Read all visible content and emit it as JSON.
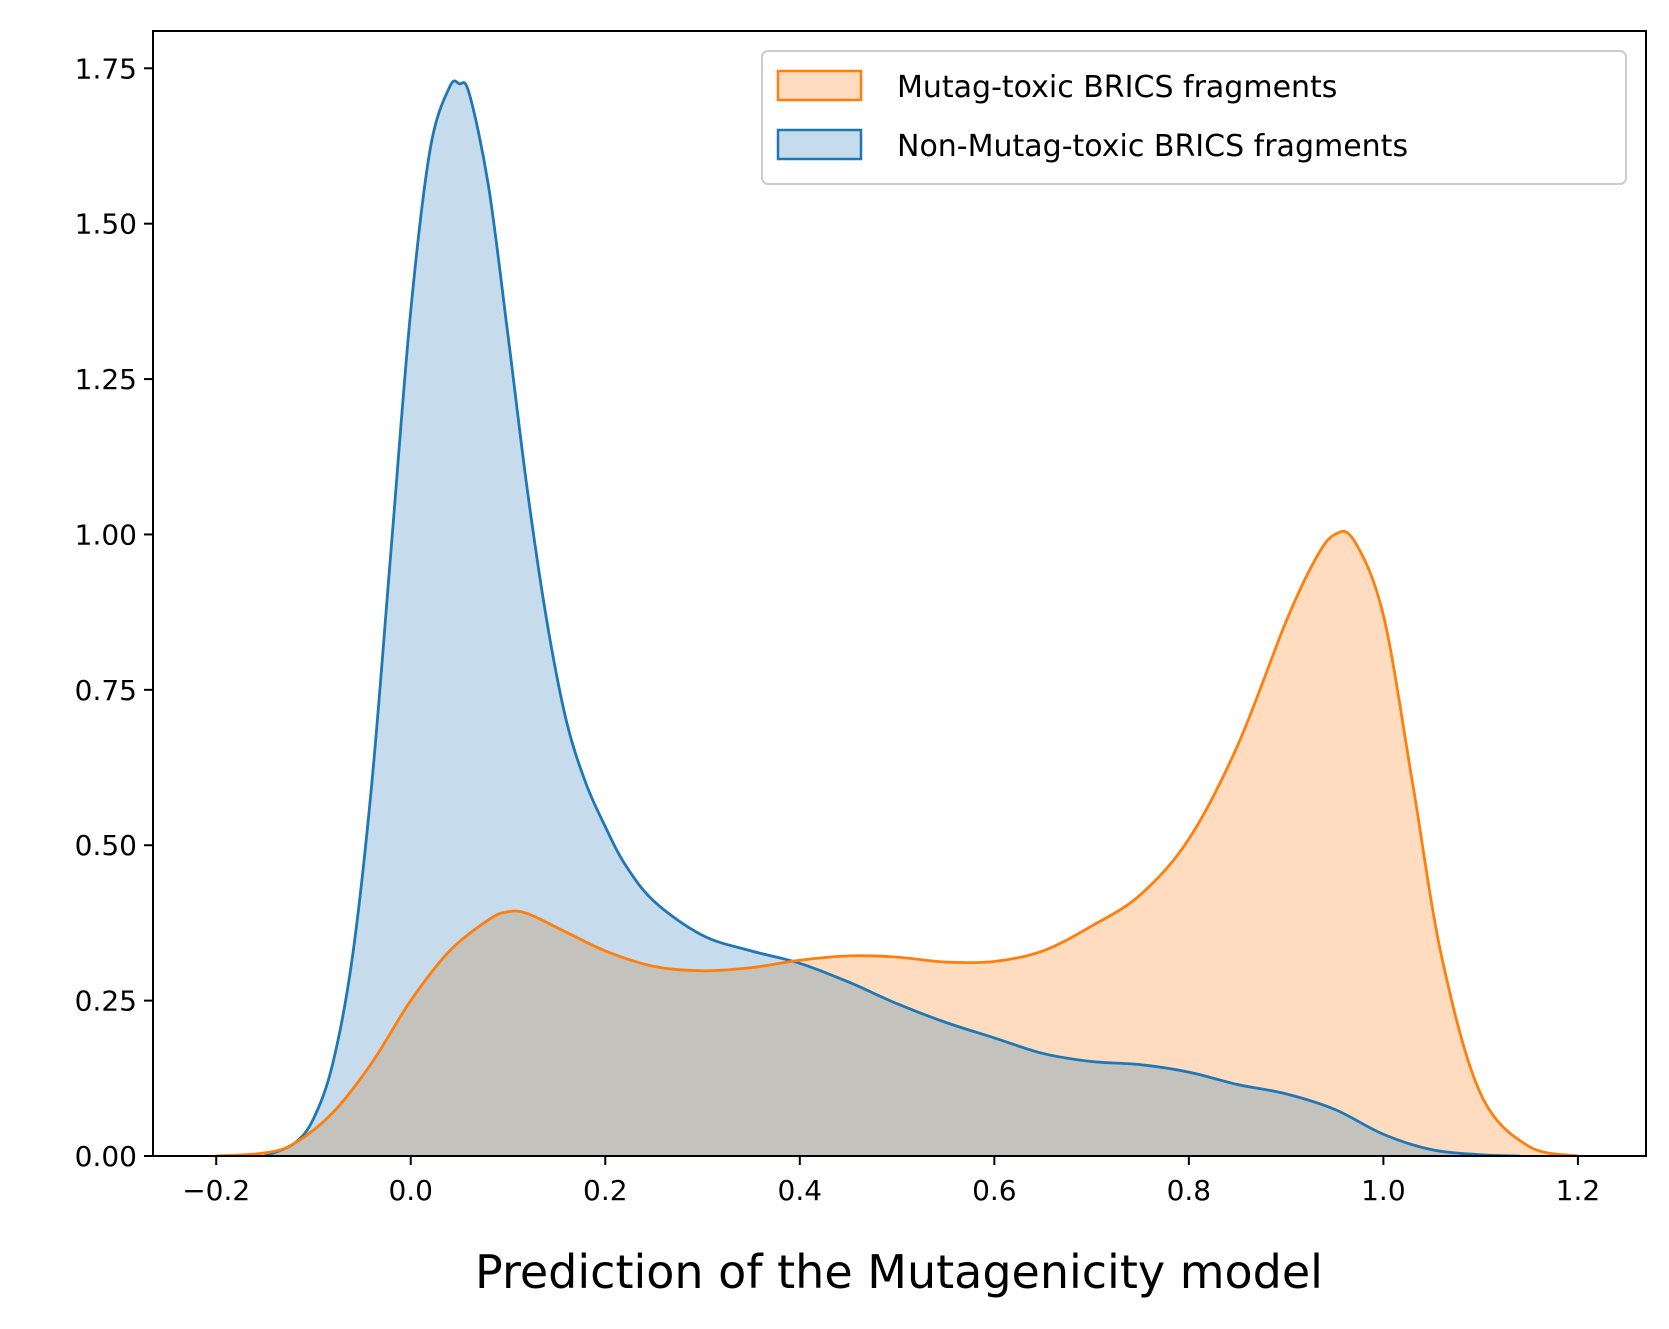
{
  "colors": {
    "mutag": "#ff7f0e",
    "mutag_fill": "#ffdcbf",
    "nonmutag": "#1f77b4",
    "nonmutag_fill": "#c6dbec",
    "overlap": "#c4c2bc"
  },
  "chart_data": {
    "type": "area",
    "title": "",
    "xlabel": "Prediction of the Mutagenicity model",
    "ylabel": "",
    "xlim": [
      -0.265,
      1.27
    ],
    "ylim": [
      0,
      1.81
    ],
    "xticks": [
      -0.2,
      0.0,
      0.2,
      0.4,
      0.6,
      0.8,
      1.0,
      1.2
    ],
    "xtick_labels": [
      "−0.2",
      "0.0",
      "0.2",
      "0.4",
      "0.6",
      "0.8",
      "1.0",
      "1.2"
    ],
    "yticks": [
      0.0,
      0.25,
      0.5,
      0.75,
      1.0,
      1.25,
      1.5,
      1.75
    ],
    "ytick_labels": [
      "0.00",
      "0.25",
      "0.50",
      "0.75",
      "1.00",
      "1.25",
      "1.50",
      "1.75"
    ],
    "grid": false,
    "legend_position": "top-right",
    "series": [
      {
        "name": "Mutag-toxic BRICS fragments",
        "x": [
          -0.2,
          -0.15,
          -0.12,
          -0.08,
          -0.04,
          0.0,
          0.04,
          0.08,
          0.1,
          0.12,
          0.16,
          0.2,
          0.25,
          0.3,
          0.35,
          0.4,
          0.45,
          0.5,
          0.55,
          0.6,
          0.65,
          0.7,
          0.75,
          0.8,
          0.85,
          0.9,
          0.93,
          0.95,
          0.97,
          1.0,
          1.03,
          1.06,
          1.1,
          1.15,
          1.2
        ],
        "y": [
          0.0,
          0.005,
          0.02,
          0.07,
          0.15,
          0.25,
          0.33,
          0.38,
          0.393,
          0.39,
          0.36,
          0.33,
          0.305,
          0.298,
          0.303,
          0.315,
          0.322,
          0.32,
          0.312,
          0.313,
          0.33,
          0.37,
          0.42,
          0.51,
          0.66,
          0.86,
          0.96,
          1.0,
          0.99,
          0.87,
          0.6,
          0.32,
          0.1,
          0.015,
          0.0
        ]
      },
      {
        "name": "Non-Mutag-toxic BRICS fragments",
        "x": [
          -0.15,
          -0.12,
          -0.1,
          -0.08,
          -0.06,
          -0.04,
          -0.02,
          0.0,
          0.02,
          0.04,
          0.05,
          0.06,
          0.08,
          0.1,
          0.12,
          0.14,
          0.16,
          0.18,
          0.2,
          0.22,
          0.25,
          0.3,
          0.35,
          0.4,
          0.45,
          0.5,
          0.55,
          0.6,
          0.65,
          0.7,
          0.75,
          0.8,
          0.85,
          0.9,
          0.95,
          1.0,
          1.05,
          1.1,
          1.14
        ],
        "y": [
          0.0,
          0.02,
          0.06,
          0.15,
          0.32,
          0.6,
          0.98,
          1.36,
          1.62,
          1.72,
          1.725,
          1.71,
          1.56,
          1.32,
          1.07,
          0.86,
          0.7,
          0.6,
          0.53,
          0.47,
          0.41,
          0.355,
          0.33,
          0.31,
          0.28,
          0.245,
          0.215,
          0.19,
          0.165,
          0.152,
          0.147,
          0.135,
          0.115,
          0.1,
          0.075,
          0.035,
          0.01,
          0.002,
          0.0
        ]
      }
    ]
  }
}
